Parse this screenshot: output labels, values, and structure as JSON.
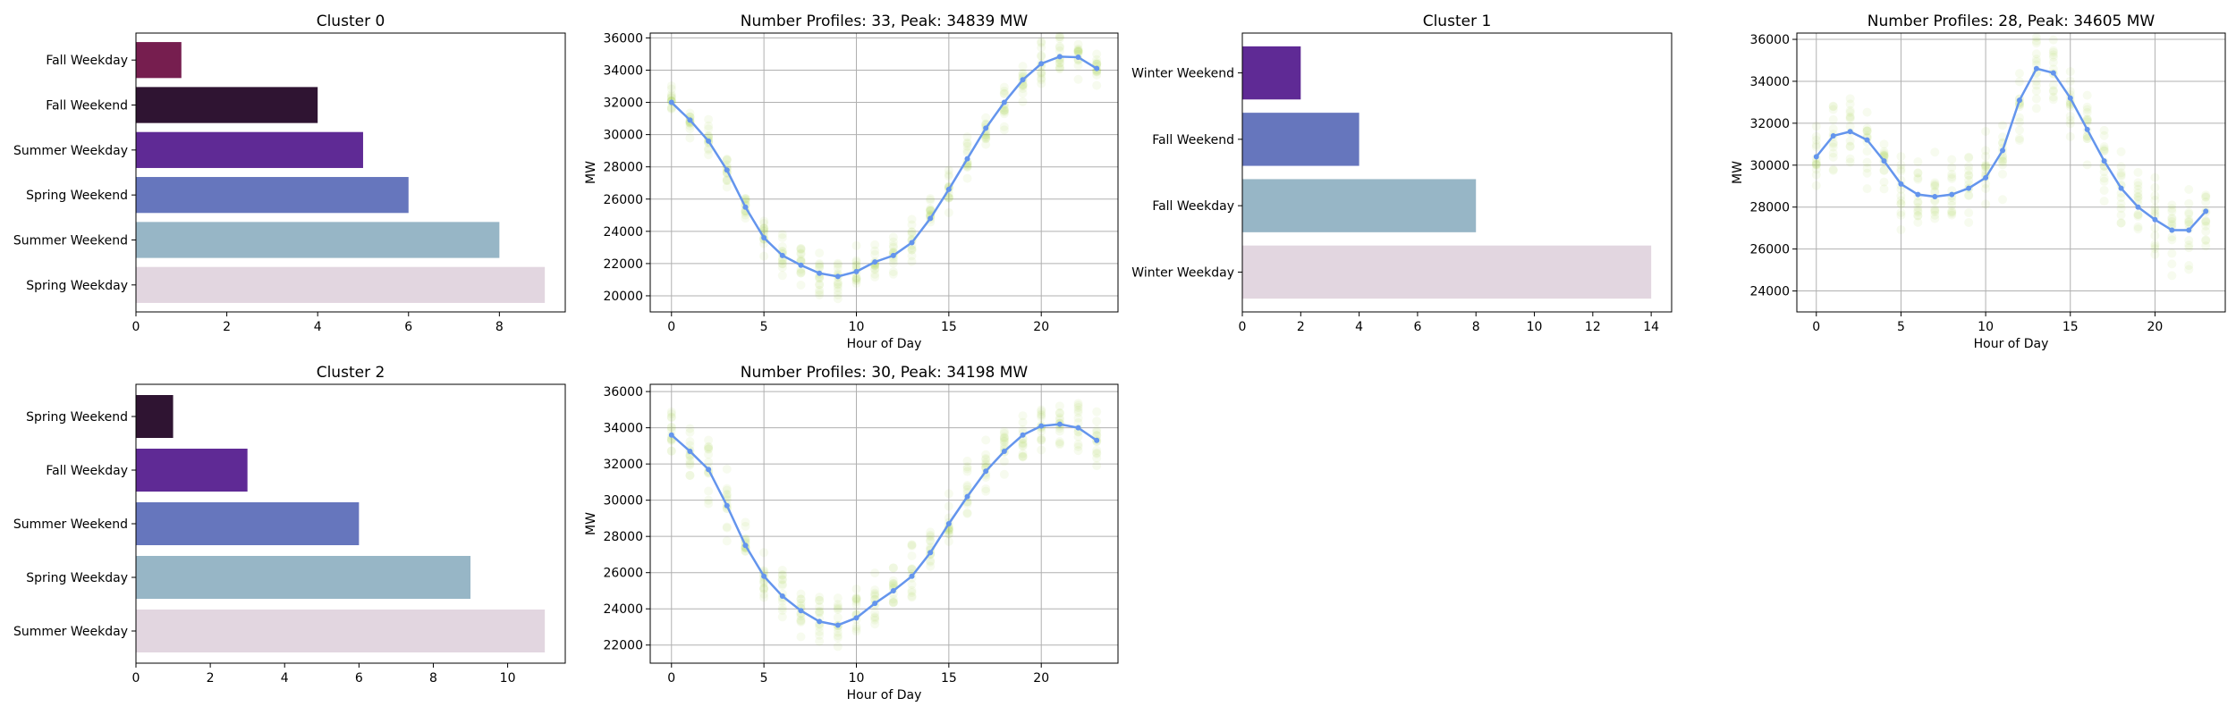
{
  "figure": {
    "colors": {
      "profile_line": "#6495ED",
      "profile_points": "#9ACD32",
      "grid": "#b0b0b0",
      "bar_palette": [
        "#e2d6e0",
        "#97b6c6",
        "#6676bd",
        "#5f2a95",
        "#2f1432",
        "#761e4f"
      ]
    }
  },
  "chart_data": [
    {
      "id": "c0bar",
      "type": "bar",
      "orientation": "horizontal",
      "title": "Cluster 0",
      "categories": [
        "Spring Weekday",
        "Summer Weekend",
        "Spring Weekend",
        "Summer Weekday",
        "Fall Weekend",
        "Fall Weekday"
      ],
      "values": [
        9,
        8,
        6,
        5,
        4,
        1
      ],
      "colors": [
        "#e2d6e0",
        "#97b6c6",
        "#6676bd",
        "#5f2a95",
        "#2f1432",
        "#761e4f"
      ],
      "xlim": [
        0,
        9.45
      ],
      "xticks": [
        0,
        2,
        4,
        6,
        8
      ],
      "grid": false
    },
    {
      "id": "c0line",
      "type": "line",
      "title": "Number Profiles: 33, Peak: 34839 MW",
      "xlabel": "Hour of Day",
      "ylabel": "MW",
      "x": [
        0,
        1,
        2,
        3,
        4,
        5,
        6,
        7,
        8,
        9,
        10,
        11,
        12,
        13,
        14,
        15,
        16,
        17,
        18,
        19,
        20,
        21,
        22,
        23
      ],
      "values": [
        32000,
        30900,
        29600,
        27800,
        25500,
        23600,
        22500,
        21900,
        21400,
        21200,
        21500,
        22100,
        22500,
        23300,
        24800,
        26600,
        28500,
        30400,
        32000,
        33400,
        34400,
        34839,
        34800,
        34100
      ],
      "spread": 1000,
      "xlim": [
        -1.15,
        24.15
      ],
      "ylim": [
        19000,
        36300
      ],
      "xticks": [
        0,
        5,
        10,
        15,
        20
      ],
      "yticks": [
        20000,
        22000,
        24000,
        26000,
        28000,
        30000,
        32000,
        34000,
        36000
      ],
      "grid": true
    },
    {
      "id": "c1bar",
      "type": "bar",
      "orientation": "horizontal",
      "title": "Cluster 1",
      "categories": [
        "Winter Weekday",
        "Fall Weekday",
        "Fall Weekend",
        "Winter Weekend"
      ],
      "values": [
        14,
        8,
        4,
        2
      ],
      "colors": [
        "#e2d6e0",
        "#97b6c6",
        "#6676bd",
        "#5f2a95"
      ],
      "xlim": [
        0,
        14.7
      ],
      "xticks": [
        0,
        2,
        4,
        6,
        8,
        10,
        12,
        14
      ],
      "grid": false
    },
    {
      "id": "c1line",
      "type": "line",
      "title": "Number Profiles: 28, Peak: 34605 MW",
      "xlabel": "Hour of Day",
      "ylabel": "MW",
      "x": [
        0,
        1,
        2,
        3,
        4,
        5,
        6,
        7,
        8,
        9,
        10,
        11,
        12,
        13,
        14,
        15,
        16,
        17,
        18,
        19,
        20,
        21,
        22,
        23
      ],
      "values": [
        30400,
        31400,
        31600,
        31200,
        30200,
        29100,
        28600,
        28500,
        28600,
        28900,
        29400,
        30700,
        33100,
        34605,
        34400,
        33200,
        31700,
        30200,
        28900,
        28000,
        27400,
        26900,
        26900,
        27800
      ],
      "spread": 1500,
      "xlim": [
        -1.15,
        24.15
      ],
      "ylim": [
        23000,
        36300
      ],
      "xticks": [
        0,
        5,
        10,
        15,
        20
      ],
      "yticks": [
        24000,
        26000,
        28000,
        30000,
        32000,
        34000,
        36000
      ],
      "grid": true
    },
    {
      "id": "c2bar",
      "type": "bar",
      "orientation": "horizontal",
      "title": "Cluster 2",
      "categories": [
        "Summer Weekday",
        "Spring Weekday",
        "Summer Weekend",
        "Fall Weekday",
        "Spring Weekend"
      ],
      "values": [
        11,
        9,
        6,
        3,
        1
      ],
      "colors": [
        "#e2d6e0",
        "#97b6c6",
        "#6676bd",
        "#5f2a95",
        "#2f1432"
      ],
      "xlim": [
        0,
        11.55
      ],
      "xticks": [
        0,
        2,
        4,
        6,
        8,
        10
      ],
      "grid": false
    },
    {
      "id": "c2line",
      "type": "line",
      "title": "Number Profiles: 30, Peak: 34198 MW",
      "xlabel": "Hour of Day",
      "ylabel": "MW",
      "x": [
        0,
        1,
        2,
        3,
        4,
        5,
        6,
        7,
        8,
        9,
        10,
        11,
        12,
        13,
        14,
        15,
        16,
        17,
        18,
        19,
        20,
        21,
        22,
        23
      ],
      "values": [
        33600,
        32700,
        31700,
        29700,
        27500,
        25800,
        24700,
        23900,
        23300,
        23100,
        23500,
        24300,
        25000,
        25800,
        27100,
        28700,
        30200,
        31600,
        32700,
        33600,
        34100,
        34198,
        34000,
        33300
      ],
      "spread": 1300,
      "xlim": [
        -1.15,
        24.15
      ],
      "ylim": [
        21000,
        36400
      ],
      "xticks": [
        0,
        5,
        10,
        15,
        20
      ],
      "yticks": [
        22000,
        24000,
        26000,
        28000,
        30000,
        32000,
        34000,
        36000
      ],
      "grid": true
    }
  ]
}
